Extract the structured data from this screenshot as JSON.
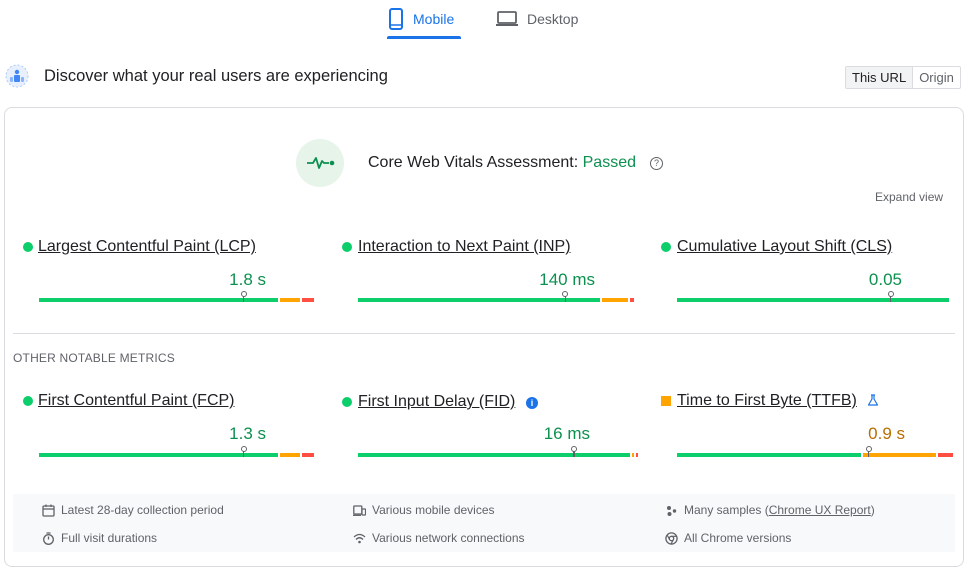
{
  "tabs": {
    "mobile_label": "Mobile",
    "desktop_label": "Desktop",
    "active": "Mobile"
  },
  "header": {
    "title": "Discover what your real users are experiencing",
    "toggle": [
      "This URL",
      "Origin"
    ],
    "toggle_selected": "This URL"
  },
  "assessment": {
    "label": "Core Web Vitals Assessment:",
    "status": "Passed",
    "help_glyph": "?",
    "expand_label": "Expand view"
  },
  "core_metrics": [
    {
      "label": "Largest Contentful Paint (LCP)",
      "value": "1.8 s",
      "rating": "good",
      "distribution": {
        "good": 0.87,
        "ni": 0.08,
        "poor": 0.05
      }
    },
    {
      "label": "Interaction to Next Paint (INP)",
      "value": "140 ms",
      "rating": "good",
      "distribution": {
        "good": 0.88,
        "ni": 0.1,
        "poor": 0.02
      }
    },
    {
      "label": "Cumulative Layout Shift (CLS)",
      "value": "0.05",
      "rating": "good",
      "distribution": {
        "good": 1.0,
        "ni": 0.0,
        "poor": 0.0
      }
    }
  ],
  "other_section_label": "OTHER NOTABLE METRICS",
  "other_metrics": [
    {
      "label": "First Contentful Paint (FCP)",
      "value": "1.3 s",
      "rating": "good",
      "distribution": {
        "good": 0.87,
        "ni": 0.08,
        "poor": 0.05
      }
    },
    {
      "label": "First Input Delay (FID)",
      "value": "16 ms",
      "rating": "good",
      "info_glyph": "i",
      "distribution": {
        "good": 0.99,
        "ni": 0.005,
        "poor": 0.005
      }
    },
    {
      "label": "Time to First Byte (TTFB)",
      "value": "0.9 s",
      "rating": "needs-improvement",
      "distribution": {
        "good": 0.67,
        "ni": 0.27,
        "poor": 0.06
      }
    }
  ],
  "footer": {
    "period": "Latest 28-day collection period",
    "durations": "Full visit durations",
    "devices": "Various mobile devices",
    "connections": "Various network connections",
    "samples_prefix": "Many samples (",
    "samples_link": "Chrome UX Report",
    "samples_suffix": ")",
    "versions": "All Chrome versions"
  },
  "colors": {
    "accent": "#1a73e8",
    "good": "#0cce6b",
    "good_text": "#0d904f",
    "needs_improvement": "#ffa400",
    "poor": "#ff4e42"
  },
  "icons": [
    "mobile-phone-icon",
    "laptop-icon",
    "crux-users-icon",
    "heartbeat-icon",
    "help-icon",
    "info-icon",
    "flask-icon",
    "calendar-icon",
    "stopwatch-icon",
    "devices-icon",
    "wifi-icon",
    "people-icon",
    "chrome-icon"
  ]
}
